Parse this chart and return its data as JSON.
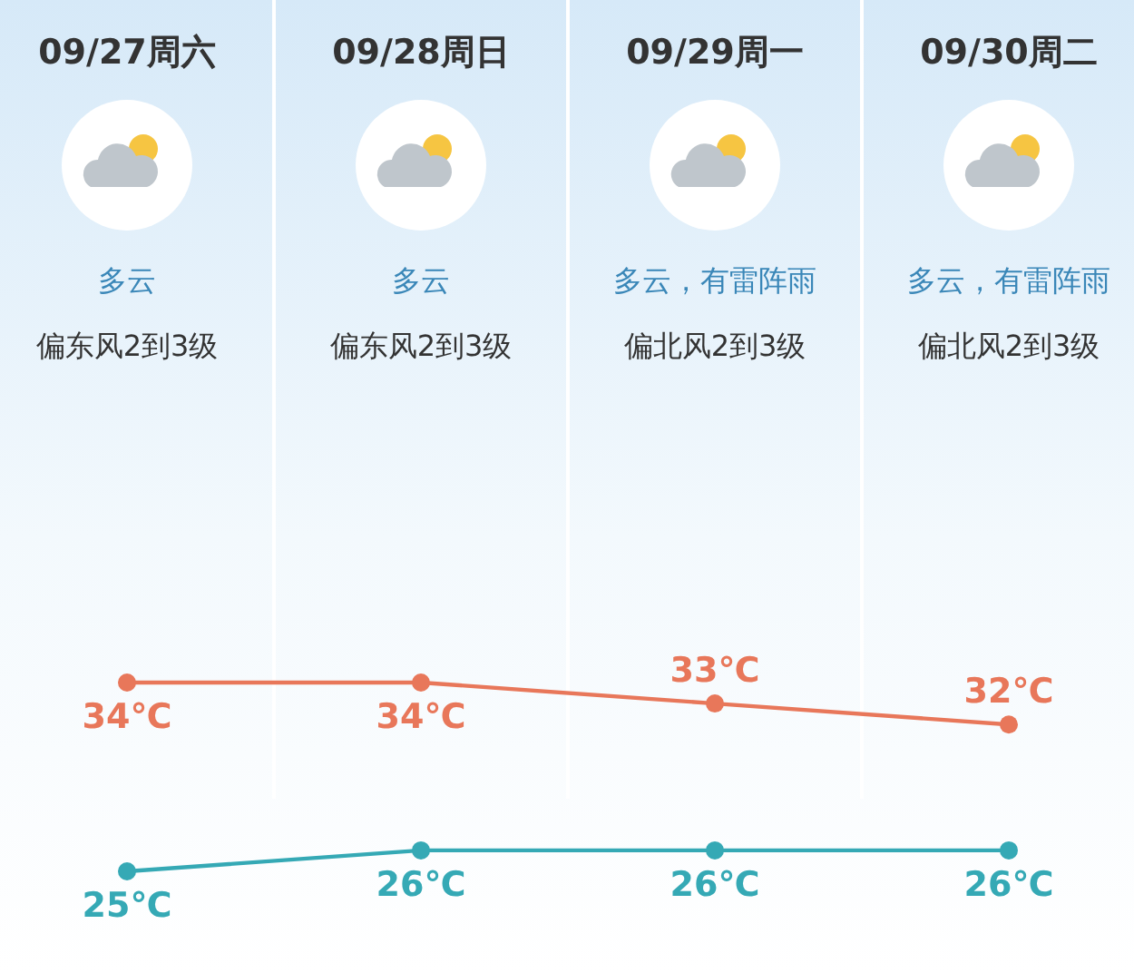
{
  "chart_data": {
    "type": "line",
    "categories": [
      "09/27周六",
      "09/28周日",
      "09/29周一",
      "09/30周二"
    ],
    "series": [
      {
        "color": "#e8775a",
        "values": [
          34,
          34,
          33,
          32
        ],
        "value_labels": [
          "34℃",
          "34℃",
          "33℃",
          "32℃"
        ]
      },
      {
        "color": "#35a9b5",
        "values": [
          25,
          26,
          26,
          26
        ],
        "value_labels": [
          "25℃",
          "26℃",
          "26℃",
          "26℃"
        ]
      }
    ],
    "annotations": [
      "多云",
      "偏东风2到3级",
      "多云",
      "偏东风2到3级",
      "多云，有雷阵雨",
      "偏北风2到3级",
      "多云，有雷阵雨",
      "偏北风2到3级"
    ],
    "marker": "circle"
  }
}
